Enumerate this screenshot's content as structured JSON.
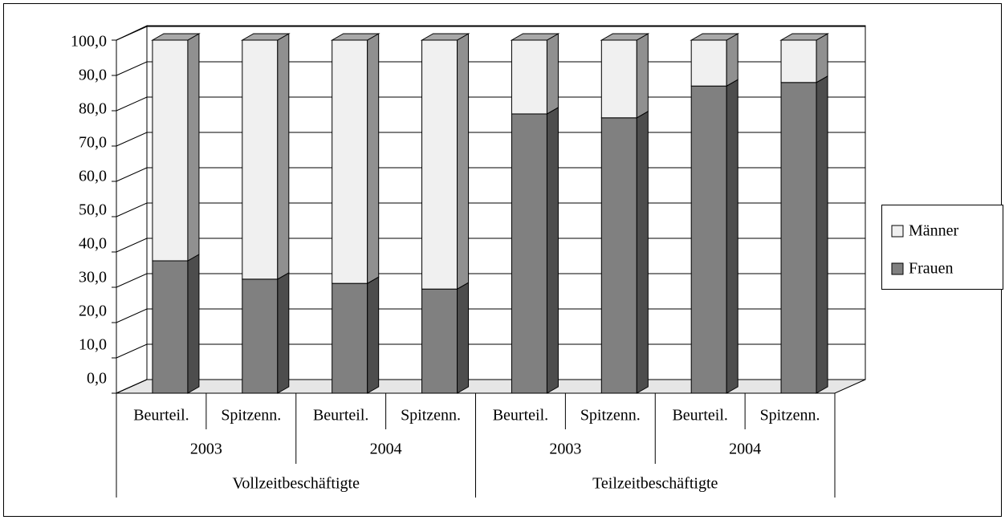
{
  "chart_data": {
    "type": "bar3d_stacked",
    "categories": [
      "Beurteil.",
      "Spitzenn.",
      "Beurteil.",
      "Spitzenn.",
      "Beurteil.",
      "Spitzenn.",
      "Beurteil.",
      "Spitzenn."
    ],
    "category_groups": [
      "2003",
      "2004",
      "2003",
      "2004"
    ],
    "category_supergroups": [
      "Vollzeitbeschäftigte",
      "Teilzeitbeschäftigte"
    ],
    "series": [
      {
        "name": "Frauen",
        "color": "#808080",
        "values": [
          37.5,
          32.3,
          31.1,
          29.5,
          79.1,
          78.0,
          87.0,
          88.0
        ]
      },
      {
        "name": "Männer",
        "color": "#f0f0f0",
        "values": [
          62.5,
          67.7,
          68.9,
          70.5,
          20.9,
          22.0,
          13.0,
          12.0
        ]
      }
    ],
    "ylim": [
      0,
      100
    ],
    "yticks": [
      {
        "value": 0,
        "label": "0,0"
      },
      {
        "value": 10,
        "label": "10,0"
      },
      {
        "value": 20,
        "label": "20,0"
      },
      {
        "value": 30,
        "label": "30,0"
      },
      {
        "value": 40,
        "label": "40,0"
      },
      {
        "value": 50,
        "label": "50,0"
      },
      {
        "value": 60,
        "label": "60,0"
      },
      {
        "value": 70,
        "label": "70,0"
      },
      {
        "value": 80,
        "label": "80,0"
      },
      {
        "value": 90,
        "label": "90,0"
      },
      {
        "value": 100,
        "label": "100,0"
      }
    ],
    "grid": true,
    "legend": "right"
  }
}
